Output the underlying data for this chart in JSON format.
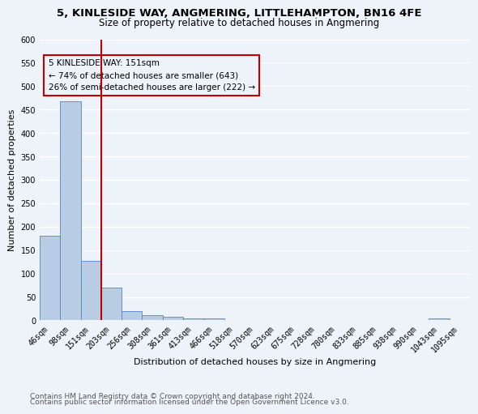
{
  "title_line1": "5, KINLESIDE WAY, ANGMERING, LITTLEHAMPTON, BN16 4FE",
  "title_line2": "Size of property relative to detached houses in Angmering",
  "xlabel": "Distribution of detached houses by size in Angmering",
  "ylabel": "Number of detached properties",
  "categories": [
    "46sqm",
    "98sqm",
    "151sqm",
    "203sqm",
    "256sqm",
    "308sqm",
    "361sqm",
    "413sqm",
    "466sqm",
    "518sqm",
    "570sqm",
    "623sqm",
    "675sqm",
    "728sqm",
    "780sqm",
    "833sqm",
    "885sqm",
    "938sqm",
    "990sqm",
    "1043sqm",
    "1095sqm"
  ],
  "values": [
    180,
    468,
    127,
    70,
    19,
    11,
    7,
    5,
    5,
    0,
    0,
    0,
    0,
    0,
    0,
    0,
    0,
    0,
    0,
    5,
    0
  ],
  "bar_color": "#b8cce4",
  "bar_edge_color": "#4e86c8",
  "highlight_line_color": "#c00000",
  "highlight_line_index": 2,
  "annotation_text": "5 KINLESIDE WAY: 151sqm\n← 74% of detached houses are smaller (643)\n26% of semi-detached houses are larger (222) →",
  "annotation_box_edge_color": "#c00000",
  "ylim": [
    0,
    600
  ],
  "yticks": [
    0,
    50,
    100,
    150,
    200,
    250,
    300,
    350,
    400,
    450,
    500,
    550,
    600
  ],
  "footer_line1": "Contains HM Land Registry data © Crown copyright and database right 2024.",
  "footer_line2": "Contains public sector information licensed under the Open Government Licence v3.0.",
  "bg_color": "#eef2f9",
  "grid_color": "#ffffff",
  "title_fontsize": 9.5,
  "subtitle_fontsize": 8.5,
  "axis_label_fontsize": 8,
  "tick_fontsize": 7,
  "annotation_fontsize": 7.5,
  "footer_fontsize": 6.5
}
